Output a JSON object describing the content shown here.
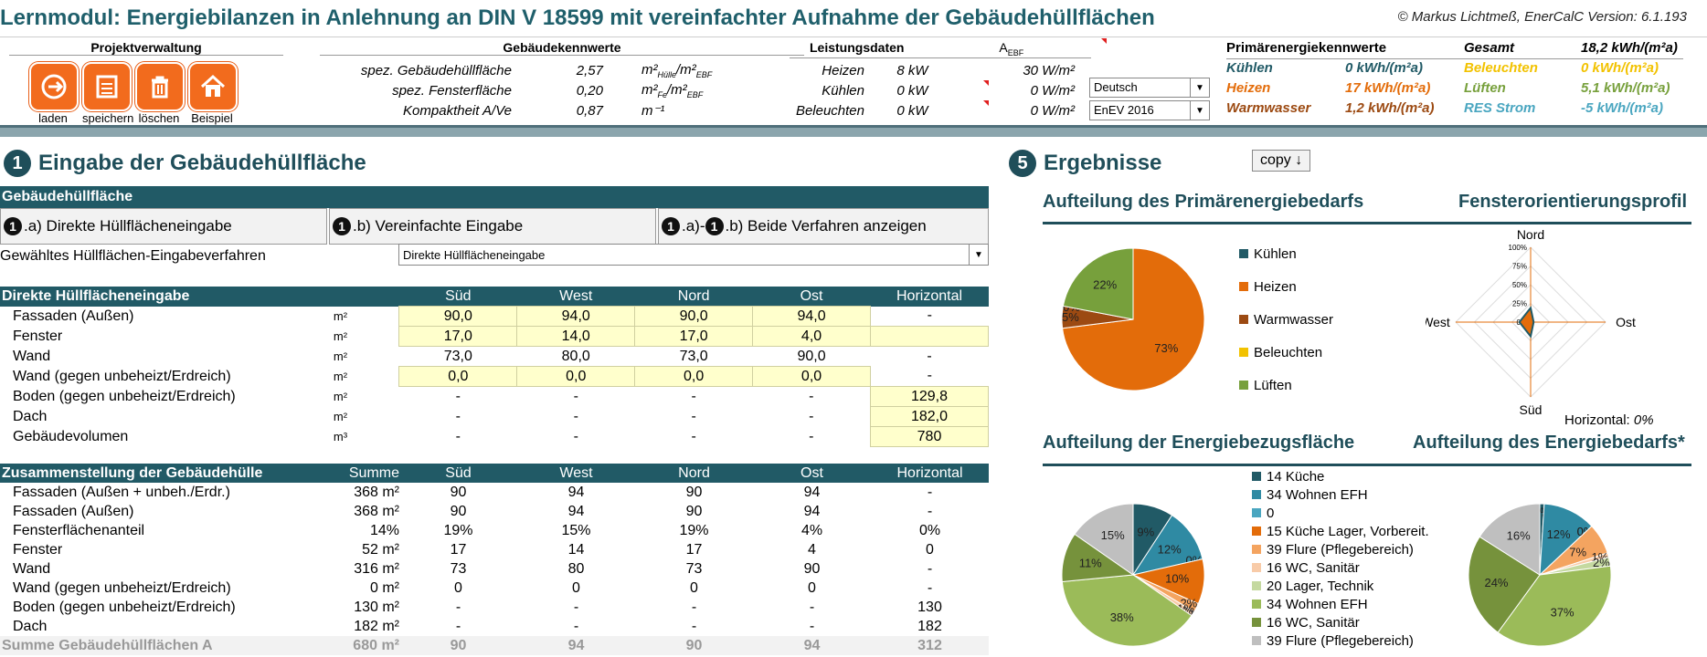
{
  "header": {
    "title": "Lernmodul: Energiebilanzen in Anlehnung an DIN V 18599 mit vereinfachter Aufnahme der Gebäudehüllflächen",
    "copyright": "© Markus Lichtmeß, EnerCalC Version: 6.1.193"
  },
  "projekt": {
    "title": "Projektverwaltung",
    "buttons": [
      {
        "label": "laden",
        "icon": "load-icon"
      },
      {
        "label": "speichern",
        "icon": "save-icon"
      },
      {
        "label": "löschen",
        "icon": "delete-icon"
      },
      {
        "label": "Beispiel",
        "icon": "home-icon"
      }
    ]
  },
  "gebaeude": {
    "title": "Gebäudekennwerte",
    "rows": [
      {
        "label": "spez. Gebäudehüllfläche",
        "value": "2,57",
        "unit_main": "m²",
        "unit_sub1": "Hülle",
        "unit_mid": "/m²",
        "unit_sub2": "EBF"
      },
      {
        "label": "spez. Fensterfläche",
        "value": "0,20",
        "unit_main": "m²",
        "unit_sub1": "Fe",
        "unit_mid": "/m²",
        "unit_sub2": "EBF"
      },
      {
        "label": "Kompaktheit A/Ve",
        "value": "0,87",
        "unit_main": "m⁻¹",
        "unit_sub1": "",
        "unit_mid": "",
        "unit_sub2": ""
      }
    ]
  },
  "leistung": {
    "title": "Leistungsdaten",
    "aebf_main": "A",
    "aebf_sub": "EBF",
    "rows": [
      {
        "label": "Heizen",
        "kw": "8 kW",
        "spec": "30 W/m²"
      },
      {
        "label": "Kühlen",
        "kw": "0 kW",
        "spec": "0 W/m²"
      },
      {
        "label": "Beleuchten",
        "kw": "0 kW",
        "spec": "0 W/m²"
      }
    ]
  },
  "selects": {
    "language": "Deutsch",
    "standard": "EnEV 2016"
  },
  "primaer": {
    "title": "Primärenergiekennwerte",
    "gesamt_label": "Gesamt",
    "gesamt_value": "18,2 kWh/(m²a)",
    "rows": [
      {
        "l1": "Kühlen",
        "v1": "0 kWh/(m²a)",
        "c1": "#215a66",
        "l2": "Beleuchten",
        "v2": "0 kWh/(m²a)",
        "c2": "#f2c200"
      },
      {
        "l1": "Heizen",
        "v1": "17 kWh/(m²a)",
        "c1": "#e36c0a",
        "l2": "Lüften",
        "v2": "5,1 kWh/(m²a)",
        "c2": "#77a03c"
      },
      {
        "l1": "Warmwasser",
        "v1": "1,2 kWh/(m²a)",
        "c1": "#9c4a12",
        "l2": "RES Strom",
        "v2": "-5 kWh/(m²a)",
        "c2": "#4aa6c0"
      }
    ]
  },
  "section1": {
    "num": "1",
    "title": "Eingabe der Gebäudehüllfläche",
    "bar": "Gebäudehüllfläche",
    "tabs": [
      {
        "n1": "1",
        "label": ".a) Direkte Hüllflächeneingabe"
      },
      {
        "n1": "1",
        "label": ".b) Vereinfachte Eingabe"
      },
      {
        "n1": "1",
        "n2": "1",
        "label_a": ".a)-",
        "label": ".b) Beide Verfahren anzeigen"
      }
    ],
    "verfahren_label": "Gewähltes Hüllflächen-Eingabeverfahren",
    "verfahren_value": "Direkte Hüllflächeneingabe"
  },
  "direkt": {
    "header": [
      "Direkte Hüllflächeneingabe",
      "Süd",
      "West",
      "Nord",
      "Ost",
      "Horizontal"
    ],
    "rows": [
      {
        "label": "Fassaden (Außen)",
        "unit": "m²",
        "cells": [
          "90,0",
          "94,0",
          "90,0",
          "94,0",
          "-"
        ],
        "yellow": [
          1,
          1,
          1,
          1,
          0
        ]
      },
      {
        "label": "Fenster",
        "unit": "m²",
        "cells": [
          "17,0",
          "14,0",
          "17,0",
          "4,0",
          ""
        ],
        "yellow": [
          1,
          1,
          1,
          1,
          1
        ]
      },
      {
        "label": "Wand",
        "unit": "m²",
        "cells": [
          "73,0",
          "80,0",
          "73,0",
          "90,0",
          "-"
        ],
        "yellow": [
          0,
          0,
          0,
          0,
          0
        ]
      },
      {
        "label": "Wand (gegen unbeheizt/Erdreich)",
        "unit": "m²",
        "cells": [
          "0,0",
          "0,0",
          "0,0",
          "0,0",
          "-"
        ],
        "yellow": [
          1,
          1,
          1,
          1,
          0
        ]
      },
      {
        "label": "Boden (gegen unbeheizt/Erdreich)",
        "unit": "m²",
        "cells": [
          "-",
          "-",
          "-",
          "-",
          "129,8"
        ],
        "yellow": [
          0,
          0,
          0,
          0,
          1
        ]
      },
      {
        "label": "Dach",
        "unit": "m²",
        "cells": [
          "-",
          "-",
          "-",
          "-",
          "182,0"
        ],
        "yellow": [
          0,
          0,
          0,
          0,
          1
        ]
      },
      {
        "label": "Gebäudevolumen",
        "unit": "m³",
        "cells": [
          "-",
          "-",
          "-",
          "-",
          "780"
        ],
        "yellow": [
          0,
          0,
          0,
          0,
          1
        ]
      }
    ]
  },
  "zusammen": {
    "header": [
      "Zusammenstellung der Gebäudehülle",
      "Summe",
      "Süd",
      "West",
      "Nord",
      "Ost",
      "Horizontal"
    ],
    "rows": [
      {
        "label": "Fassaden (Außen + unbeh./Erdr.)",
        "sum": "368 m²",
        "cells": [
          "90",
          "94",
          "90",
          "94",
          "-"
        ]
      },
      {
        "label": "Fassaden (Außen)",
        "sum": "368 m²",
        "cells": [
          "90",
          "94",
          "90",
          "94",
          "-"
        ]
      },
      {
        "label": "Fensterflächenanteil",
        "sum": "14%",
        "cells": [
          "19%",
          "15%",
          "19%",
          "4%",
          "0%"
        ]
      },
      {
        "label": "Fenster",
        "sum": "52 m²",
        "cells": [
          "17",
          "14",
          "17",
          "4",
          "0"
        ]
      },
      {
        "label": "Wand",
        "sum": "316 m²",
        "cells": [
          "73",
          "80",
          "73",
          "90",
          "-"
        ]
      },
      {
        "label": "Wand (gegen unbeheizt/Erdreich)",
        "sum": "0 m²",
        "cells": [
          "0",
          "0",
          "0",
          "0",
          "-"
        ]
      },
      {
        "label": "Boden (gegen unbeheizt/Erdreich)",
        "sum": "130 m²",
        "cells": [
          "-",
          "-",
          "-",
          "-",
          "130"
        ]
      },
      {
        "label": "Dach",
        "sum": "182 m²",
        "cells": [
          "-",
          "-",
          "-",
          "-",
          "182"
        ]
      },
      {
        "label": "Summe Gebäudehüllflächen A",
        "sum": "680 m²",
        "cells": [
          "90",
          "94",
          "90",
          "94",
          "312"
        ]
      }
    ]
  },
  "section5": {
    "num": "5",
    "title": "Ergebnisse",
    "copy_label": "copy ↓"
  },
  "chart_data": [
    {
      "type": "pie",
      "title": "Aufteilung des Primärenergiebedarfs",
      "labels": [
        "Kühlen",
        "Heizen",
        "Warmwasser",
        "Beleuchten",
        "Lüften"
      ],
      "values": [
        0,
        73,
        5,
        0,
        22
      ],
      "slice_labels": [
        "0%",
        "73%",
        "5%",
        "0%",
        "22%"
      ],
      "colors": [
        "#215a66",
        "#e36c0a",
        "#9c4a12",
        "#f2c200",
        "#77a03c"
      ]
    },
    {
      "type": "radar",
      "title": "Fensterorientierungsprofil",
      "axes": [
        "Nord",
        "Ost",
        "Süd",
        "West"
      ],
      "ticks": [
        "100%",
        "75%",
        "50%",
        "25%",
        "0%"
      ],
      "values": [
        19,
        4,
        19,
        15
      ],
      "horizontal_label": "Horizontal:",
      "horizontal_value": "0%"
    },
    {
      "type": "pie",
      "title": "Aufteilung der Energiebezugsfläche",
      "legend": [
        "14 Küche",
        "34 Wohnen EFH",
        "0",
        "15 Küche Lager, Vorbereit.",
        "39 Flure (Pflegebereich)",
        "16 WC, Sanitär",
        "20 Lager, Technik",
        "34 Wohnen EFH",
        "16 WC, Sanitär",
        "39 Flure (Pflegebereich)"
      ],
      "colors": [
        "#215a66",
        "#2f8aa3",
        "#4aa6c0",
        "#e36c0a",
        "#f4a460",
        "#f8cba8",
        "#c5d9a0",
        "#9bbb59",
        "#76923c",
        "#bfbfbf"
      ],
      "values": [
        9,
        12,
        0,
        10,
        2,
        1,
        0,
        38,
        11,
        15
      ],
      "slice_labels": [
        "9%",
        "12%",
        "0%",
        "10%",
        "2%",
        "1%",
        "0%",
        "38%",
        "11%",
        "15%"
      ]
    },
    {
      "type": "pie",
      "title": "Aufteilung des Energiebedarfs*",
      "values": [
        1,
        12,
        0,
        0,
        7,
        1,
        2,
        37,
        24,
        16
      ],
      "slice_labels": [
        "1%",
        "12%",
        "0%",
        "0%",
        "7%",
        "1%",
        "2%",
        "37%",
        "24%",
        "16%"
      ],
      "colors": [
        "#215a66",
        "#2f8aa3",
        "#4aa6c0",
        "#e36c0a",
        "#f4a460",
        "#f8cba8",
        "#c5d9a0",
        "#9bbb59",
        "#76923c",
        "#bfbfbf"
      ]
    }
  ]
}
